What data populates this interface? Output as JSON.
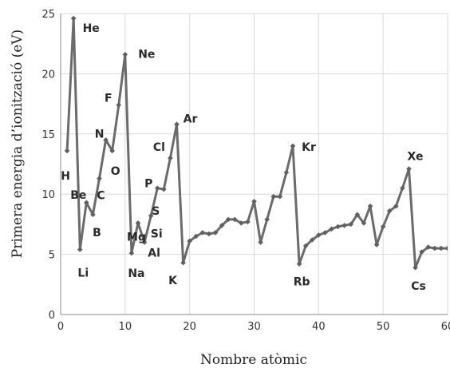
{
  "chart_data": {
    "type": "line",
    "title": "",
    "xlabel": "Nombre atòmic",
    "ylabel": "Primera energia d’ionització (eV)",
    "xlim": [
      0,
      60
    ],
    "ylim": [
      0,
      25
    ],
    "xticks": [
      0,
      10,
      20,
      30,
      40,
      50,
      60
    ],
    "yticks": [
      0,
      5,
      10,
      15,
      20,
      25
    ],
    "grid": true,
    "legend": "none",
    "line_color": "#6b6b6b",
    "x": [
      1,
      2,
      3,
      4,
      5,
      6,
      7,
      8,
      9,
      10,
      11,
      12,
      13,
      14,
      15,
      16,
      17,
      18,
      19,
      20,
      21,
      22,
      23,
      24,
      25,
      26,
      27,
      28,
      29,
      30,
      31,
      32,
      33,
      34,
      35,
      36,
      37,
      38,
      39,
      40,
      41,
      42,
      43,
      44,
      45,
      46,
      47,
      48,
      49,
      50,
      51,
      52,
      53,
      54,
      55,
      56,
      57,
      58,
      59,
      60,
      61
    ],
    "values": [
      13.6,
      24.6,
      5.4,
      9.3,
      8.3,
      11.3,
      14.5,
      13.6,
      17.4,
      21.6,
      5.1,
      7.6,
      6.0,
      8.2,
      10.5,
      10.4,
      13.0,
      15.8,
      4.3,
      6.1,
      6.5,
      6.8,
      6.7,
      6.8,
      7.4,
      7.9,
      7.9,
      7.6,
      7.7,
      9.4,
      6.0,
      7.9,
      9.8,
      9.8,
      11.8,
      14.0,
      4.2,
      5.7,
      6.2,
      6.6,
      6.8,
      7.1,
      7.3,
      7.4,
      7.5,
      8.3,
      7.6,
      9.0,
      5.8,
      7.3,
      8.6,
      9.0,
      10.5,
      12.1,
      3.9,
      5.2,
      5.6,
      5.5,
      5.5,
      5.5,
      5.6
    ],
    "annotations": [
      {
        "text": "H",
        "x": 1,
        "y": 13.6
      },
      {
        "text": "He",
        "x": 2,
        "y": 24.6
      },
      {
        "text": "Li",
        "x": 3,
        "y": 5.4
      },
      {
        "text": "Be",
        "x": 4,
        "y": 9.3
      },
      {
        "text": "B",
        "x": 5,
        "y": 8.3
      },
      {
        "text": "C",
        "x": 6,
        "y": 11.3
      },
      {
        "text": "N",
        "x": 7,
        "y": 14.5
      },
      {
        "text": "O",
        "x": 8,
        "y": 13.6
      },
      {
        "text": "F",
        "x": 9,
        "y": 17.4
      },
      {
        "text": "Ne",
        "x": 10,
        "y": 21.6
      },
      {
        "text": "Na",
        "x": 11,
        "y": 5.1
      },
      {
        "text": "Mg",
        "x": 12,
        "y": 7.6
      },
      {
        "text": "Al",
        "x": 13,
        "y": 6.0
      },
      {
        "text": "Si",
        "x": 14,
        "y": 8.2
      },
      {
        "text": "P",
        "x": 15,
        "y": 10.5
      },
      {
        "text": "S",
        "x": 16,
        "y": 10.4
      },
      {
        "text": "Cl",
        "x": 17,
        "y": 13.0
      },
      {
        "text": "Ar",
        "x": 18,
        "y": 15.8
      },
      {
        "text": "K",
        "x": 19,
        "y": 4.3
      },
      {
        "text": "Kr",
        "x": 36,
        "y": 14.0
      },
      {
        "text": "Rb",
        "x": 37,
        "y": 4.2
      },
      {
        "text": "Xe",
        "x": 54,
        "y": 12.1
      },
      {
        "text": "Cs",
        "x": 55,
        "y": 3.9
      }
    ]
  }
}
